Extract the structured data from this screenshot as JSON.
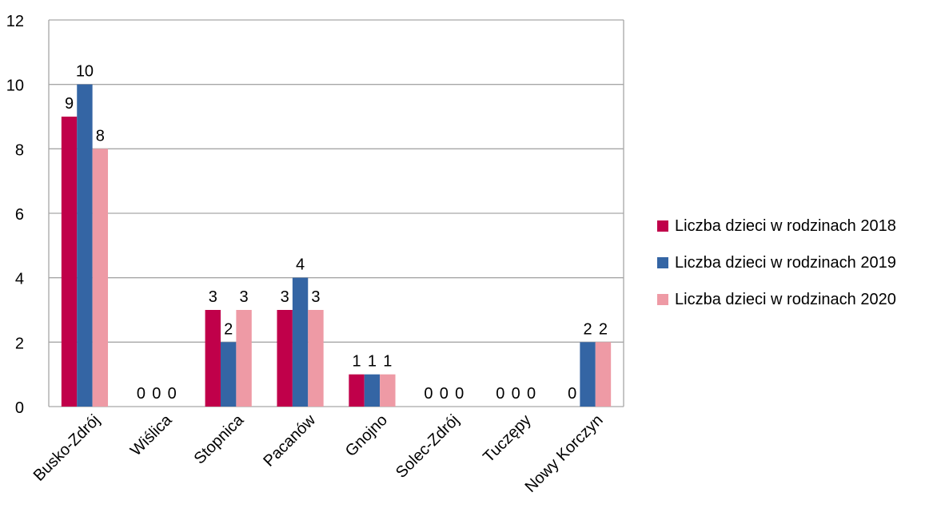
{
  "chart_data": {
    "type": "bar",
    "title": "",
    "xlabel": "",
    "ylabel": "",
    "ylim": [
      0,
      12
    ],
    "yticks": [
      0,
      2,
      4,
      6,
      8,
      10,
      12
    ],
    "ytick_labels": [
      "0",
      "2",
      "4",
      "6",
      "8",
      "10",
      "12"
    ],
    "grid": true,
    "legend_position": "right",
    "categories": [
      "Busko-Zdrój",
      "Wiślica",
      "Stopnica",
      "Pacanów",
      "Gnojno",
      "Solec-Zdrój",
      "Tuczępy",
      "Nowy Korczyn"
    ],
    "series": [
      {
        "name": "Liczba dzieci w rodzinach 2018",
        "color": "#C0004A",
        "values": [
          9,
          0,
          3,
          3,
          1,
          0,
          0,
          0
        ],
        "data_labels": [
          "9",
          "0",
          "3",
          "3",
          "1",
          "0",
          "0",
          "0"
        ]
      },
      {
        "name": "Liczba dzieci w rodzinach 2019",
        "color": "#3465A4",
        "values": [
          10,
          0,
          2,
          4,
          1,
          0,
          0,
          2
        ],
        "data_labels": [
          "10",
          "0",
          "2",
          "4",
          "1",
          "0",
          "0",
          "2"
        ]
      },
      {
        "name": "Liczba dzieci w rodzinach 2020",
        "color": "#EE9AA5",
        "values": [
          8,
          0,
          3,
          3,
          1,
          0,
          0,
          2
        ],
        "data_labels": [
          "8",
          "0",
          "3",
          "3",
          "1",
          "0",
          "0",
          "2"
        ]
      }
    ]
  }
}
